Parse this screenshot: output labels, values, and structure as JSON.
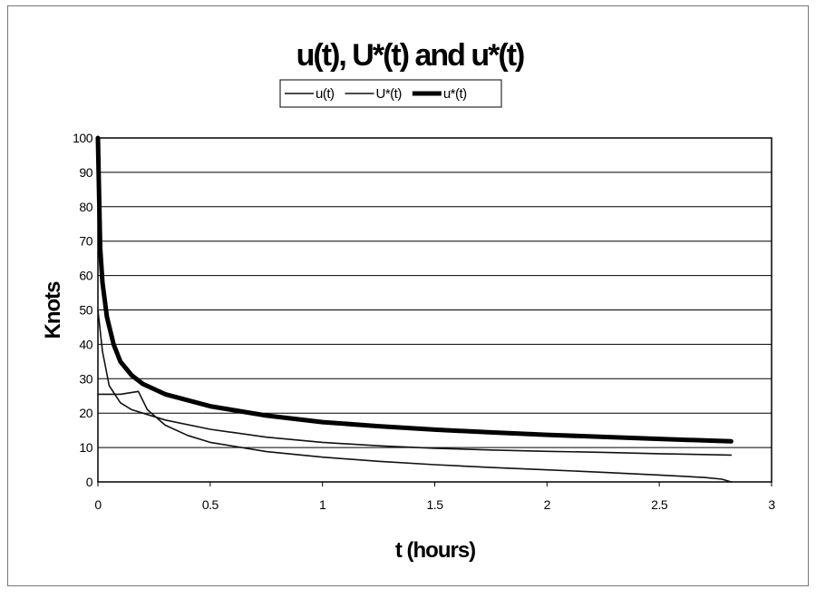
{
  "chart_data": {
    "type": "line",
    "title": "u(t),  U*(t) and u*(t)",
    "xlabel": "t  (hours)",
    "ylabel": "Knots",
    "xlim": [
      0,
      3
    ],
    "ylim": [
      0,
      100
    ],
    "xticks": [
      0,
      0.5,
      1,
      1.5,
      2,
      2.5,
      3
    ],
    "xtick_labels": [
      "0",
      "0.5",
      "1",
      "1.5",
      "2",
      "2.5",
      "3"
    ],
    "yticks": [
      0,
      10,
      20,
      30,
      40,
      50,
      60,
      70,
      80,
      90,
      100
    ],
    "ytick_labels": [
      "0",
      "10",
      "20",
      "30",
      "40",
      "50",
      "60",
      "70",
      "80",
      "90",
      "100"
    ],
    "grid": "horizontal",
    "legend_position": "top",
    "series": [
      {
        "name": "u(t)",
        "color": "#111111",
        "width": "thin",
        "points": [
          [
            0,
            25.5
          ],
          [
            0.1,
            25.5
          ],
          [
            0.18,
            26.3
          ],
          [
            0.22,
            21
          ],
          [
            0.3,
            16.5
          ],
          [
            0.4,
            13.5
          ],
          [
            0.5,
            11.5
          ],
          [
            0.75,
            8.8
          ],
          [
            1.0,
            7.2
          ],
          [
            1.25,
            6.0
          ],
          [
            1.5,
            5.0
          ],
          [
            1.75,
            4.2
          ],
          [
            2.0,
            3.5
          ],
          [
            2.25,
            2.8
          ],
          [
            2.5,
            2.0
          ],
          [
            2.7,
            1.3
          ],
          [
            2.78,
            0.8
          ],
          [
            2.82,
            0
          ]
        ]
      },
      {
        "name": "U*(t)",
        "color": "#111111",
        "width": "thin",
        "points": [
          [
            0,
            50
          ],
          [
            0.02,
            38
          ],
          [
            0.05,
            28
          ],
          [
            0.1,
            23
          ],
          [
            0.15,
            21
          ],
          [
            0.2,
            20
          ],
          [
            0.3,
            18
          ],
          [
            0.5,
            15.3
          ],
          [
            0.75,
            13
          ],
          [
            1.0,
            11.5
          ],
          [
            1.25,
            10.5
          ],
          [
            1.5,
            9.8
          ],
          [
            1.75,
            9.3
          ],
          [
            2.0,
            8.9
          ],
          [
            2.25,
            8.6
          ],
          [
            2.5,
            8.2
          ],
          [
            2.82,
            7.8
          ]
        ]
      },
      {
        "name": "u*(t)",
        "color": "#000000",
        "width": "thick",
        "points": [
          [
            0,
            100
          ],
          [
            0.01,
            68
          ],
          [
            0.02,
            58
          ],
          [
            0.04,
            48
          ],
          [
            0.07,
            40
          ],
          [
            0.1,
            35
          ],
          [
            0.15,
            31
          ],
          [
            0.2,
            28.5
          ],
          [
            0.3,
            25.5
          ],
          [
            0.5,
            22
          ],
          [
            0.75,
            19.3
          ],
          [
            1.0,
            17.4
          ],
          [
            1.25,
            16.2
          ],
          [
            1.5,
            15.2
          ],
          [
            1.75,
            14.4
          ],
          [
            2.0,
            13.7
          ],
          [
            2.25,
            13.1
          ],
          [
            2.5,
            12.5
          ],
          [
            2.82,
            11.8
          ]
        ]
      }
    ]
  }
}
